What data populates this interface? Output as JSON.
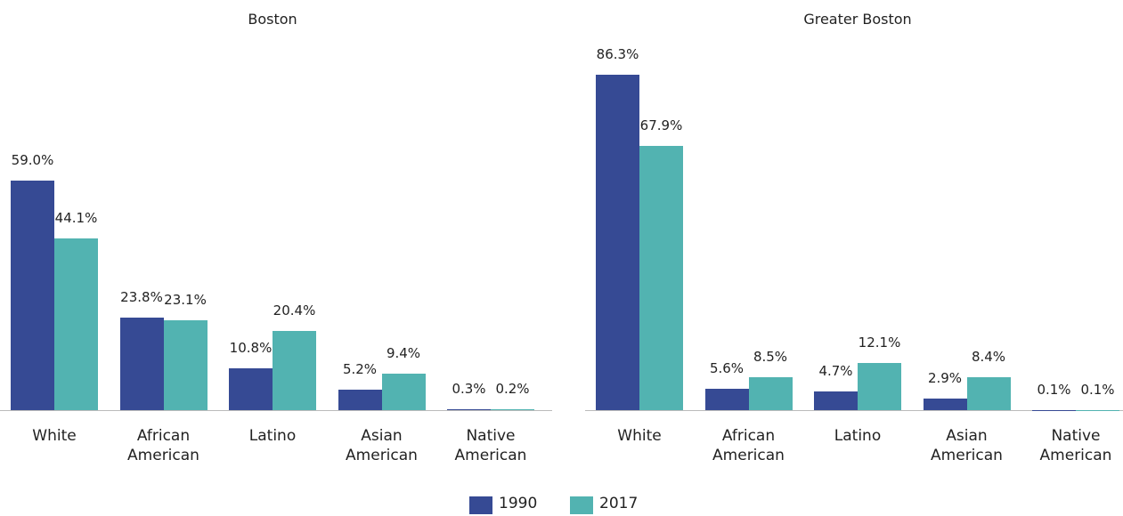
{
  "chart_data": [
    {
      "type": "bar",
      "title": "Boston",
      "categories": [
        "White",
        "African American",
        "Latino",
        "Asian American",
        "Native American"
      ],
      "series": [
        {
          "name": "1990",
          "color": "#364a94",
          "values": [
            59.0,
            23.8,
            10.8,
            5.2,
            0.3
          ],
          "value_labels": [
            "59.0%",
            "23.8%",
            "10.8%",
            "5.2%",
            "0.3%"
          ]
        },
        {
          "name": "2017",
          "color": "#52b3b1",
          "values": [
            44.1,
            23.1,
            20.4,
            9.4,
            0.2
          ],
          "value_labels": [
            "44.1%",
            "23.1%",
            "20.4%",
            "9.4%",
            "0.2%"
          ]
        }
      ],
      "ylim": [
        0,
        100
      ]
    },
    {
      "type": "bar",
      "title": "Greater Boston",
      "categories": [
        "White",
        "African American",
        "Latino",
        "Asian American",
        "Native American"
      ],
      "series": [
        {
          "name": "1990",
          "color": "#364a94",
          "values": [
            86.3,
            5.6,
            4.7,
            2.9,
            0.1
          ],
          "value_labels": [
            "86.3%",
            "5.6%",
            "4.7%",
            "2.9%",
            "0.1%"
          ]
        },
        {
          "name": "2017",
          "color": "#52b3b1",
          "values": [
            67.9,
            8.5,
            12.1,
            8.4,
            0.1
          ],
          "value_labels": [
            "67.9%",
            "8.5%",
            "12.1%",
            "8.4%",
            "0.1%"
          ]
        }
      ],
      "ylim": [
        0,
        100
      ]
    }
  ]
}
